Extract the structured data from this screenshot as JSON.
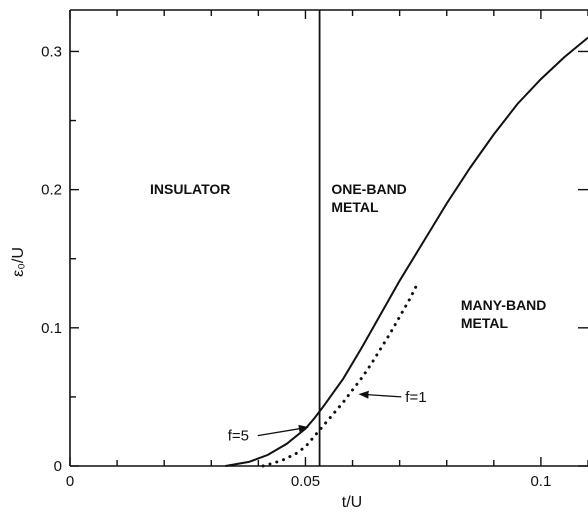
{
  "chart_data": {
    "type": "line",
    "title": "",
    "xlabel": "t/U",
    "ylabel": "ε₀/U",
    "xlim": [
      0,
      0.11
    ],
    "ylim": [
      0,
      0.33
    ],
    "grid": false,
    "x_ticks": [
      {
        "value": 0,
        "label": "0"
      },
      {
        "value": 0.05,
        "label": "0.05"
      },
      {
        "value": 0.1,
        "label": "0.1"
      }
    ],
    "y_ticks": [
      {
        "value": 0,
        "label": "0"
      },
      {
        "value": 0.1,
        "label": "0.1"
      },
      {
        "value": 0.2,
        "label": "0.2"
      },
      {
        "value": 0.3,
        "label": "0.3"
      }
    ],
    "series": [
      {
        "style": "solid",
        "color": "#111111",
        "x": [
          0.033,
          0.038,
          0.042,
          0.046,
          0.05,
          0.052,
          0.054,
          0.058,
          0.062,
          0.066,
          0.07,
          0.075,
          0.08,
          0.085,
          0.09,
          0.095,
          0.1,
          0.105,
          0.11
        ],
        "y": [
          0.0,
          0.003,
          0.008,
          0.016,
          0.027,
          0.035,
          0.044,
          0.063,
          0.086,
          0.11,
          0.134,
          0.162,
          0.19,
          0.216,
          0.24,
          0.262,
          0.28,
          0.296,
          0.31
        ]
      },
      {
        "style": "dotted",
        "color": "#111111",
        "x": [
          0.041,
          0.045,
          0.048,
          0.05,
          0.052,
          0.054,
          0.056,
          0.058,
          0.06,
          0.062,
          0.064,
          0.066,
          0.068,
          0.07,
          0.072,
          0.0735
        ],
        "y": [
          0.0,
          0.004,
          0.009,
          0.014,
          0.022,
          0.03,
          0.038,
          0.046,
          0.055,
          0.064,
          0.074,
          0.085,
          0.096,
          0.108,
          0.12,
          0.13
        ]
      }
    ],
    "vertical_lines": [
      {
        "x": 0.053,
        "style": "solid"
      }
    ],
    "region_labels": [
      {
        "lines": [
          "INSULATOR"
        ],
        "x": 0.017,
        "y": 0.197
      },
      {
        "lines": [
          "ONE-BAND",
          "METAL"
        ],
        "x": 0.0555,
        "y": 0.197
      },
      {
        "lines": [
          "MANY-BAND",
          "METAL"
        ],
        "x": 0.083,
        "y": 0.113
      }
    ],
    "annotations": [
      {
        "text": "f=5",
        "text_x": 0.0335,
        "text_y": 0.022,
        "arrow_to_x": 0.0505,
        "arrow_to_y": 0.028
      },
      {
        "text": "f=1",
        "text_x": 0.0712,
        "text_y": 0.05,
        "arrow_to_x": 0.0615,
        "arrow_to_y": 0.052
      }
    ]
  }
}
